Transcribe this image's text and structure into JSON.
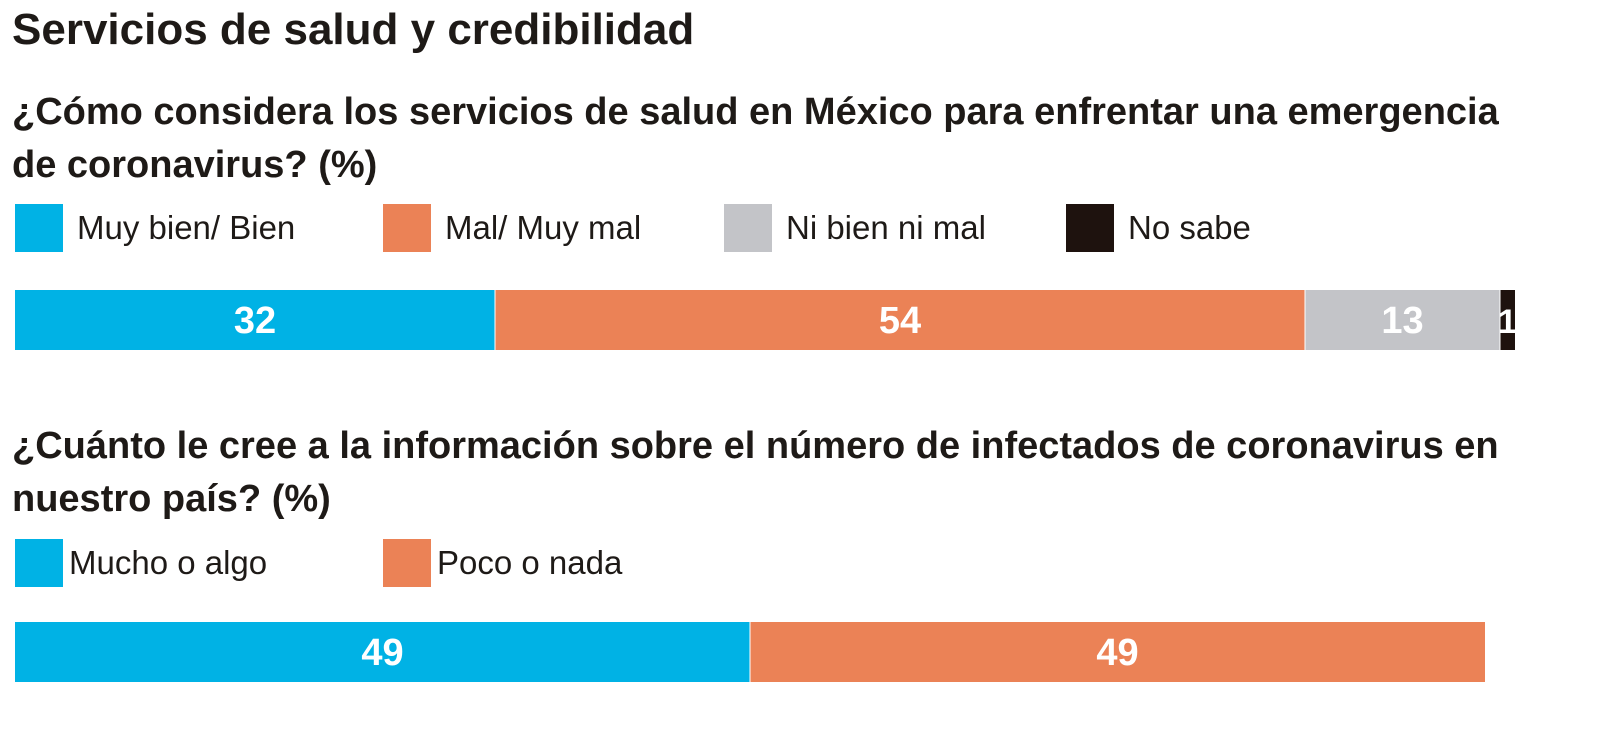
{
  "title": "Servicios de salud y credibilidad",
  "colors": {
    "blue": "#00b2e5",
    "orange": "#eb8256",
    "gray": "#c3c4c8",
    "black": "#1e120e",
    "text": "#1e1a17",
    "label_light": "#ffffff"
  },
  "chart_data": [
    {
      "type": "bar",
      "orientation": "horizontal-stacked",
      "title": "¿Cómo considera los servicios de salud en México para enfrentar una emergencia de coronavirus?  (%)",
      "unit": "%",
      "xlim": [
        0,
        100
      ],
      "grid": false,
      "legend_position": "top",
      "categories": [
        ""
      ],
      "series": [
        {
          "name": "Muy bien/ Bien",
          "values": [
            32
          ],
          "color": "#00b2e5"
        },
        {
          "name": "Mal/ Muy mal",
          "values": [
            54
          ],
          "color": "#eb8256"
        },
        {
          "name": "Ni bien ni mal",
          "values": [
            13
          ],
          "color": "#c3c4c8"
        },
        {
          "name": "No sabe",
          "values": [
            1
          ],
          "color": "#1e120e"
        }
      ]
    },
    {
      "type": "bar",
      "orientation": "horizontal-stacked",
      "title": "¿Cuánto le cree a la información sobre el número de infectados de coronavirus en nuestro país?  (%)",
      "unit": "%",
      "xlim": [
        0,
        100
      ],
      "grid": false,
      "legend_position": "top",
      "categories": [
        ""
      ],
      "series": [
        {
          "name": "Mucho o algo",
          "values": [
            49
          ],
          "color": "#00b2e5"
        },
        {
          "name": "Poco o nada",
          "values": [
            49
          ],
          "color": "#eb8256"
        }
      ]
    }
  ]
}
